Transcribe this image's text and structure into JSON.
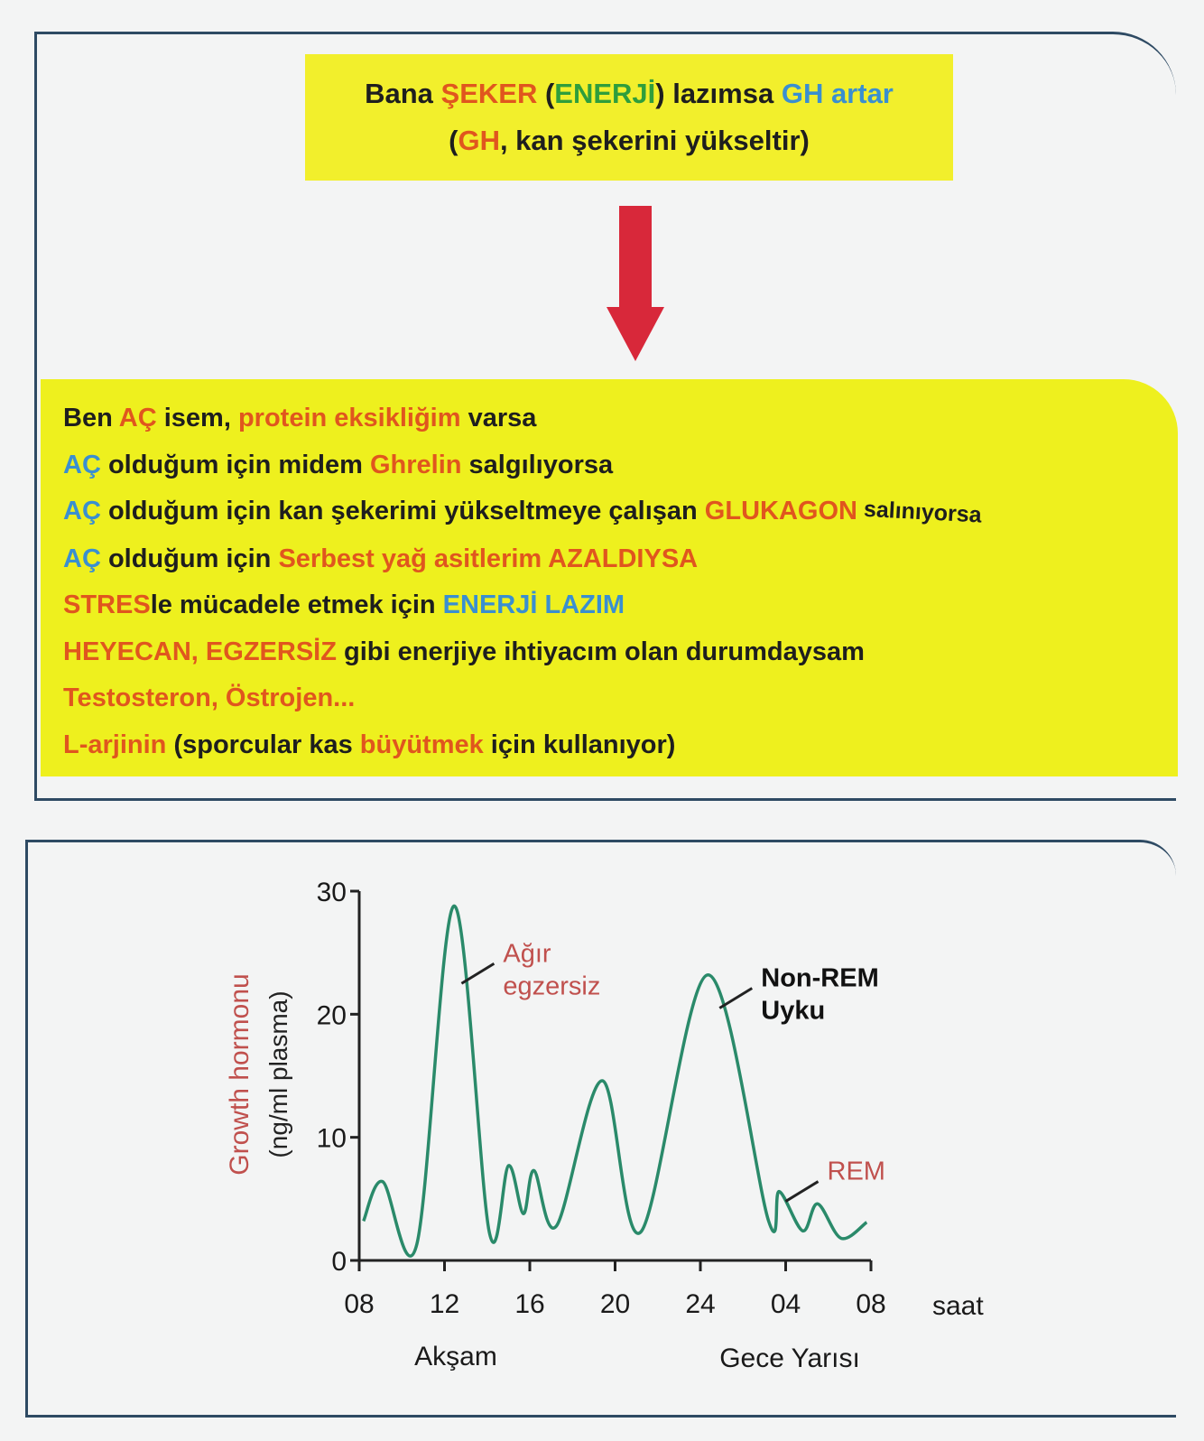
{
  "colors": {
    "black": "#1e1e1e",
    "red": "#e0561e",
    "blue": "#3a8fd0",
    "green": "#2f9e3c",
    "curve": "#2a8a6a",
    "axis_label": "#c0504d"
  },
  "top_box": {
    "lines": [
      [
        {
          "t": "Bana ",
          "c": "black"
        },
        {
          "t": "ŞEKER",
          "c": "red"
        },
        {
          "t": " (",
          "c": "black"
        },
        {
          "t": "ENERJİ",
          "c": "green"
        },
        {
          "t": ") lazımsa ",
          "c": "black"
        },
        {
          "t": "GH artar",
          "c": "blue"
        }
      ],
      [
        {
          "t": "(",
          "c": "black"
        },
        {
          "t": "GH",
          "c": "red"
        },
        {
          "t": ", kan şekerini yükseltir)",
          "c": "black"
        }
      ]
    ]
  },
  "arrow_icon": "down-arrow",
  "list_box": {
    "lines": [
      [
        {
          "t": "Ben ",
          "c": "black"
        },
        {
          "t": "AÇ",
          "c": "red"
        },
        {
          "t": " isem, ",
          "c": "black"
        },
        {
          "t": "protein eksikliğim",
          "c": "red"
        },
        {
          "t": " varsa",
          "c": "black"
        }
      ],
      [
        {
          "t": "AÇ",
          "c": "blue"
        },
        {
          "t": " olduğum için midem ",
          "c": "black"
        },
        {
          "t": "Ghrelin",
          "c": "red"
        },
        {
          "t": " salgılıyorsa",
          "c": "black"
        }
      ],
      [
        {
          "t": "AÇ",
          "c": "blue"
        },
        {
          "t": " olduğum için kan şekerimi yükseltmeye çalışan ",
          "c": "black"
        },
        {
          "t": "GLUKAGON",
          "c": "red"
        },
        {
          "t": " salınıyorsa",
          "c": "black"
        }
      ],
      [
        {
          "t": "AÇ",
          "c": "blue"
        },
        {
          "t": " olduğum için ",
          "c": "black"
        },
        {
          "t": "Serbest yağ asitlerim AZALDIYSA",
          "c": "red"
        }
      ],
      [
        {
          "t": "STRES",
          "c": "red"
        },
        {
          "t": "le mücadele etmek için ",
          "c": "black"
        },
        {
          "t": "ENERJİ LAZIM",
          "c": "blue"
        }
      ],
      [
        {
          "t": "HEYECAN, EGZERSİZ",
          "c": "red"
        },
        {
          "t": " gibi enerjiye ihtiyacım olan durumdaysam",
          "c": "black"
        }
      ],
      [
        {
          "t": "Testosteron, Östrojen...",
          "c": "red"
        }
      ],
      [
        {
          "t": "L-arjinin",
          "c": "red"
        },
        {
          "t": " (sporcular kas ",
          "c": "black"
        },
        {
          "t": "büyütmek",
          "c": "red"
        },
        {
          "t": " için kullanıyor)",
          "c": "black"
        }
      ]
    ]
  },
  "chart_data": {
    "type": "line",
    "ylabel_line1": "Growth hormonu",
    "ylabel_line2": "(ng/ml plasma)",
    "xunit": "saat",
    "xlabel_left": "Akşam",
    "xlabel_right": "Gece Yarısı",
    "x_ticks": [
      "08",
      "12",
      "16",
      "20",
      "24",
      "04",
      "08"
    ],
    "y_ticks": [
      "0",
      "10",
      "20",
      "30"
    ],
    "ylim": [
      0,
      30
    ],
    "xlim_hours": [
      8,
      32
    ],
    "grid": false,
    "series": [
      {
        "x": [
          8.2,
          9.1,
          10.7,
          12.45,
          14.1,
          15.0,
          15.7,
          16.2,
          17.25,
          19.4,
          21.2,
          24.35,
          27.2,
          27.7,
          28.8,
          29.5,
          30.6,
          31.8
        ],
        "y": [
          3.2,
          6.4,
          1.3,
          28.8,
          2.3,
          7.7,
          3.8,
          7.3,
          2.8,
          14.6,
          2.3,
          23.2,
          3.2,
          5.6,
          2.4,
          4.6,
          1.8,
          3.1
        ]
      }
    ],
    "annotations": [
      {
        "text1": "Ağır",
        "text2": "egzersiz",
        "color": "red",
        "x": 12.8,
        "y": 22.5
      },
      {
        "text1": "Non-REM",
        "text2": "Uyku",
        "color": "black",
        "x": 24.9,
        "y": 20.5
      },
      {
        "text1": "REM",
        "text2": "",
        "color": "red",
        "x": 28,
        "y": 4.8
      }
    ]
  }
}
